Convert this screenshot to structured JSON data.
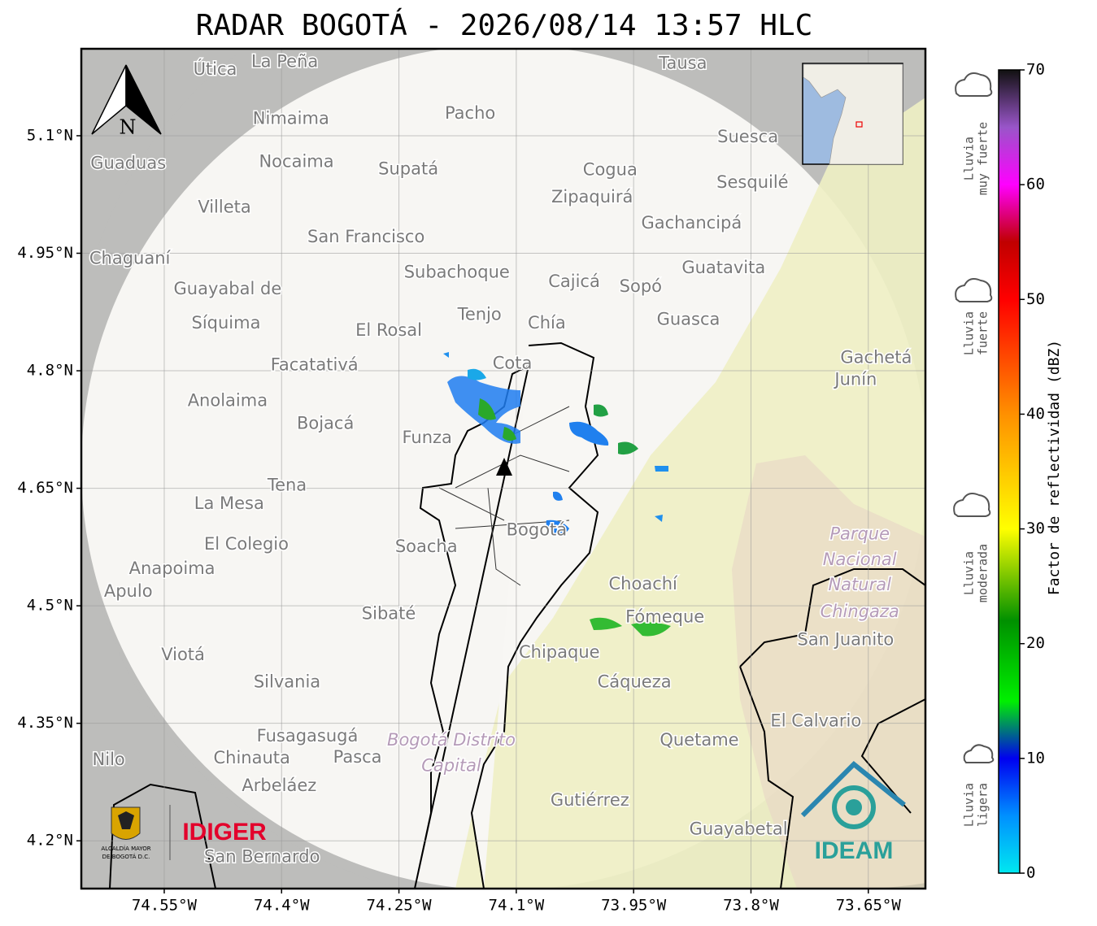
{
  "title": "RADAR BOGOTÁ - 2026/08/14 13:57 HLC",
  "map": {
    "lonlim": [
      -74.656,
      -73.577
    ],
    "latlim": [
      4.139,
      5.211
    ],
    "lon_ticks": [
      {
        "value": -74.55,
        "label": "74.55°W"
      },
      {
        "value": -74.4,
        "label": "74.4°W"
      },
      {
        "value": -74.25,
        "label": "74.25°W"
      },
      {
        "value": -74.1,
        "label": "74.1°W"
      },
      {
        "value": -73.95,
        "label": "73.95°W"
      },
      {
        "value": -73.8,
        "label": "73.8°W"
      },
      {
        "value": -73.65,
        "label": "73.65°W"
      }
    ],
    "lat_ticks": [
      {
        "value": 5.1,
        "label": "5.1°N"
      },
      {
        "value": 4.95,
        "label": "4.95°N"
      },
      {
        "value": 4.8,
        "label": "4.8°N"
      },
      {
        "value": 4.65,
        "label": "4.65°N"
      },
      {
        "value": 4.5,
        "label": "4.5°N"
      },
      {
        "value": 4.35,
        "label": "4.35°N"
      },
      {
        "value": 4.2,
        "label": "4.2°N"
      }
    ],
    "grid": true,
    "north": "N",
    "places": [
      {
        "label": "La Peña",
        "lon": -74.396,
        "lat": 5.194
      },
      {
        "label": "Útica",
        "lon": -74.485,
        "lat": 5.184
      },
      {
        "label": "Tausa",
        "lon": -73.887,
        "lat": 5.192
      },
      {
        "label": "Pacho",
        "lon": -74.159,
        "lat": 5.128
      },
      {
        "label": "Nimaima",
        "lon": -74.388,
        "lat": 5.121
      },
      {
        "label": "Guaduas",
        "lon": -74.596,
        "lat": 5.064
      },
      {
        "label": "Nocaima",
        "lon": -74.381,
        "lat": 5.066
      },
      {
        "label": "Supatá",
        "lon": -74.238,
        "lat": 5.057
      },
      {
        "label": "Cogua",
        "lon": -73.98,
        "lat": 5.056
      },
      {
        "label": "Suesca",
        "lon": -73.804,
        "lat": 5.098
      },
      {
        "label": "Sesquilé",
        "lon": -73.798,
        "lat": 5.04
      },
      {
        "label": "Zipaquirá",
        "lon": -74.003,
        "lat": 5.021
      },
      {
        "label": "Villeta",
        "lon": -74.473,
        "lat": 5.008
      },
      {
        "label": "Gachancipá",
        "lon": -73.876,
        "lat": 4.988
      },
      {
        "label": "San Francisco",
        "lon": -74.292,
        "lat": 4.97
      },
      {
        "label": "Guatavita",
        "lon": -73.835,
        "lat": 4.931
      },
      {
        "label": "Chaguaní",
        "lon": -74.594,
        "lat": 4.943
      },
      {
        "label": "Subachoque",
        "lon": -74.176,
        "lat": 4.925
      },
      {
        "label": "Cajicá",
        "lon": -74.026,
        "lat": 4.913
      },
      {
        "label": "Sopó",
        "lon": -73.941,
        "lat": 4.907
      },
      {
        "label": "Guayabal de",
        "lon": -74.469,
        "lat": 4.904
      },
      {
        "label": "Síquima",
        "lon": -74.471,
        "lat": 4.86
      },
      {
        "label": "Tenjo",
        "lon": -74.147,
        "lat": 4.871
      },
      {
        "label": "Chía",
        "lon": -74.061,
        "lat": 4.86
      },
      {
        "label": "Guasca",
        "lon": -73.88,
        "lat": 4.865
      },
      {
        "label": "El Rosal",
        "lon": -74.263,
        "lat": 4.851
      },
      {
        "label": "Facatativá",
        "lon": -74.358,
        "lat": 4.807
      },
      {
        "label": "Cota",
        "lon": -74.105,
        "lat": 4.809
      },
      {
        "label": "Gachetá",
        "lon": -73.64,
        "lat": 4.816
      },
      {
        "label": "Junín",
        "lon": -73.666,
        "lat": 4.788
      },
      {
        "label": "Anolaima",
        "lon": -74.469,
        "lat": 4.761
      },
      {
        "label": "Bojacá",
        "lon": -74.344,
        "lat": 4.732
      },
      {
        "label": "Funza",
        "lon": -74.214,
        "lat": 4.714
      },
      {
        "label": "Tena",
        "lon": -74.393,
        "lat": 4.653
      },
      {
        "label": "La Mesa",
        "lon": -74.467,
        "lat": 4.63
      },
      {
        "label": "El Colegio",
        "lon": -74.445,
        "lat": 4.578
      },
      {
        "label": "Bogotá",
        "lon": -74.074,
        "lat": 4.596
      },
      {
        "label": "Soacha",
        "lon": -74.215,
        "lat": 4.575
      },
      {
        "label": "Anapoima",
        "lon": -74.54,
        "lat": 4.547
      },
      {
        "label": "Apulo",
        "lon": -74.596,
        "lat": 4.518
      },
      {
        "label": "Choachí",
        "lon": -73.938,
        "lat": 4.527
      },
      {
        "label": "Fómeque",
        "lon": -73.91,
        "lat": 4.485
      },
      {
        "label": "Sibaté",
        "lon": -74.263,
        "lat": 4.489
      },
      {
        "label": "Parque",
        "lon": -73.661,
        "lat": 4.591,
        "italic": true
      },
      {
        "label": "Nacional",
        "lon": -73.661,
        "lat": 4.558,
        "italic": true
      },
      {
        "label": "Natural",
        "lon": -73.661,
        "lat": 4.526,
        "italic": true
      },
      {
        "label": "Chingaza",
        "lon": -73.661,
        "lat": 4.492,
        "italic": true
      },
      {
        "label": "San Juanito",
        "lon": -73.679,
        "lat": 4.456
      },
      {
        "label": "Viotá",
        "lon": -74.526,
        "lat": 4.437
      },
      {
        "label": "Chipaque",
        "lon": -74.045,
        "lat": 4.44
      },
      {
        "label": "Silvania",
        "lon": -74.393,
        "lat": 4.402
      },
      {
        "label": "Cáqueza",
        "lon": -73.949,
        "lat": 4.402
      },
      {
        "label": "El Calvario",
        "lon": -73.717,
        "lat": 4.352
      },
      {
        "label": "Fusagasugá",
        "lon": -74.367,
        "lat": 4.333
      },
      {
        "label": "Bogotá Distrito",
        "lon": -74.183,
        "lat": 4.328,
        "italic": true
      },
      {
        "label": "Capital",
        "lon": -74.183,
        "lat": 4.295,
        "italic": true
      },
      {
        "label": "Quetame",
        "lon": -73.866,
        "lat": 4.328
      },
      {
        "label": "Nilo",
        "lon": -74.621,
        "lat": 4.303
      },
      {
        "label": "Chinauta",
        "lon": -74.438,
        "lat": 4.305
      },
      {
        "label": "Pasca",
        "lon": -74.303,
        "lat": 4.306
      },
      {
        "label": "Arbeláez",
        "lon": -74.403,
        "lat": 4.27
      },
      {
        "label": "Gutiérrez",
        "lon": -74.006,
        "lat": 4.251
      },
      {
        "label": "Guayabetal",
        "lon": -73.816,
        "lat": 4.214
      },
      {
        "label": "San Bernardo",
        "lon": -74.425,
        "lat": 4.179
      }
    ]
  },
  "colorbar": {
    "label": "Factor de reflectividad (dBZ)",
    "lim": [
      0,
      70
    ],
    "ticks": [
      0,
      10,
      20,
      30,
      40,
      50,
      60,
      70
    ],
    "colormap": [
      {
        "value": 0,
        "color": "#00e8f0"
      },
      {
        "value": 5,
        "color": "#0090ff"
      },
      {
        "value": 10,
        "color": "#0000f0"
      },
      {
        "value": 15,
        "color": "#00f000"
      },
      {
        "value": 22,
        "color": "#009000"
      },
      {
        "value": 30,
        "color": "#ffff00"
      },
      {
        "value": 40,
        "color": "#ff9000"
      },
      {
        "value": 50,
        "color": "#ff0000"
      },
      {
        "value": 55,
        "color": "#c00000"
      },
      {
        "value": 60,
        "color": "#ff00ff"
      },
      {
        "value": 65,
        "color": "#9955c9"
      },
      {
        "value": 70,
        "color": "#111111"
      }
    ]
  },
  "rain_legend": [
    {
      "lines": [
        "Lluvia",
        "muy fuerte"
      ]
    },
    {
      "lines": [
        "Lluvia",
        "fuerte"
      ]
    },
    {
      "lines": [
        "Lluvia",
        "moderada"
      ]
    },
    {
      "lines": [
        "Lluvia",
        "ligera"
      ]
    }
  ],
  "logos": {
    "alcaldia": [
      "ALCALDÍA MAYOR",
      "DE BOGOTÁ D.C."
    ],
    "idiger": "IDIGER",
    "ideam": "IDEAM"
  }
}
